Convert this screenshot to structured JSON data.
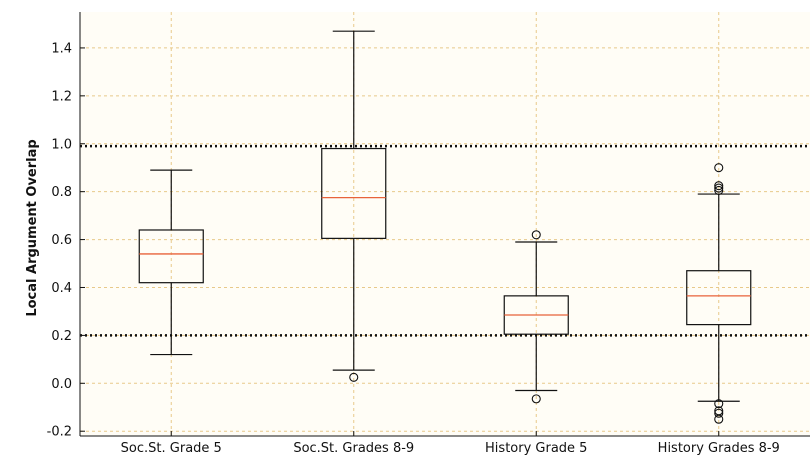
{
  "chart_data": {
    "type": "boxplot",
    "title": "",
    "xlabel": "",
    "ylabel": "Local Argument Overlap",
    "ylim": [
      -0.22,
      1.55
    ],
    "yticks": [
      -0.2,
      0.0,
      0.2,
      0.4,
      0.6,
      0.8,
      1.0,
      1.2,
      1.4
    ],
    "ytick_labels": [
      "-0.2",
      "0.0",
      "0.2",
      "0.4",
      "0.6",
      "0.8",
      "1.0",
      "1.2",
      "1.4"
    ],
    "grid": true,
    "reference_lines": [
      0.2,
      0.99
    ],
    "categories": [
      "Soc.St. Grade 5",
      "Soc.St. Grades 8-9",
      "History Grade 5",
      "History Grades 8-9"
    ],
    "boxes": [
      {
        "whisker_low": 0.12,
        "q1": 0.42,
        "median": 0.54,
        "q3": 0.64,
        "whisker_high": 0.89,
        "outliers": []
      },
      {
        "whisker_low": 0.055,
        "q1": 0.605,
        "median": 0.775,
        "q3": 0.98,
        "whisker_high": 1.47,
        "outliers": [
          0.025
        ]
      },
      {
        "whisker_low": -0.03,
        "q1": 0.205,
        "median": 0.285,
        "q3": 0.365,
        "whisker_high": 0.59,
        "outliers": [
          -0.065,
          0.62
        ]
      },
      {
        "whisker_low": -0.075,
        "q1": 0.245,
        "median": 0.365,
        "q3": 0.47,
        "whisker_high": 0.79,
        "outliers": [
          -0.085,
          -0.115,
          -0.125,
          -0.15,
          0.805,
          0.815,
          0.825,
          0.9
        ]
      }
    ],
    "colors": {
      "box": "#111111",
      "median": "#e8623a",
      "grid": "#e8c98a",
      "background": "#fffdf6",
      "reference": "#111111"
    }
  }
}
